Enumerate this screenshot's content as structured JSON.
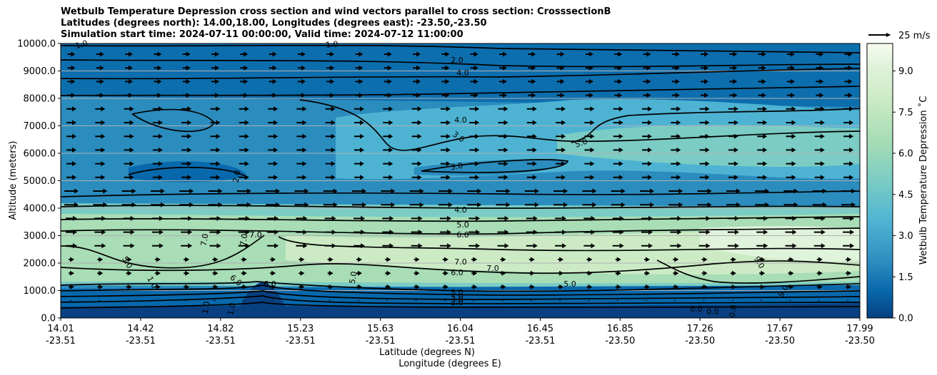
{
  "chart_data": {
    "type": "heatmap",
    "title_lines": [
      "Wetbulb Temperature Depression cross section and wind vectors parallel to cross section: CrosssectionB",
      "Latitudes (degrees north): 14.00,18.00, Longitudes (degrees east): -23.50,-23.50",
      "Simulation start time: 2024-07-11 00:00:00, Valid time: 2024-07-12 11:00:00"
    ],
    "ylabel": "Altitude (meters)",
    "xlabel_line1": "Latitude (degrees N)",
    "xlabel_line2": "Longitude (degrees E)",
    "ylim": [
      0,
      10000
    ],
    "yticks": [
      "0.0",
      "1000.0",
      "2000.0",
      "3000.0",
      "4000.0",
      "5000.0",
      "6000.0",
      "7000.0",
      "8000.0",
      "9000.0",
      "10000.0"
    ],
    "xticks_lat": [
      "14.01",
      "14.42",
      "14.82",
      "15.23",
      "15.63",
      "16.04",
      "16.45",
      "16.85",
      "17.26",
      "17.67",
      "17.99"
    ],
    "xticks_lon": [
      "-23.51",
      "-23.51",
      "-23.51",
      "-23.51",
      "-23.51",
      "-23.51",
      "-23.51",
      "-23.50",
      "-23.50",
      "-23.50",
      "-23.50"
    ],
    "colorbar_label": "Wetbulb Temperature Depression ˚C",
    "colorbar_range": [
      0.0,
      10.0
    ],
    "colorbar_ticks": [
      "0.0",
      "1.5",
      "3.0",
      "4.5",
      "6.0",
      "7.5",
      "9.0"
    ],
    "quiver_key_label": "25 m/s",
    "contour_labels": [
      "1.0",
      "1.0",
      "2.0",
      "4.0",
      "4.0",
      "3.0",
      "3.0",
      "5.0",
      "2.0",
      "4.0",
      "5.0",
      "6.0",
      "7.0",
      "7.0",
      "7.0",
      "5.0",
      "7.0",
      "6.0",
      "6.0",
      "6.0",
      "5.0",
      "5.0",
      "5.0",
      "7.0",
      "9.0",
      "9.0",
      "1.0",
      "1.0",
      "1.0",
      "0.0",
      "0.0",
      "0.0",
      "5.0",
      "3.0",
      "2.0"
    ],
    "colors": {
      "low": "#084081",
      "mid": "#4aa9cf",
      "high": "#f7fcf0"
    }
  }
}
